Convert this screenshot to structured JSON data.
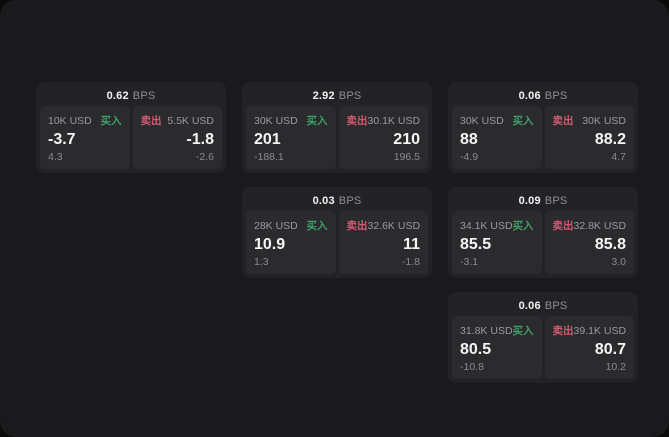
{
  "colors": {
    "page_bg": "#0b0b0c",
    "panel_bg": "#1a1a1c",
    "card_bg": "#232326",
    "subcard_bg": "#2b2b2e",
    "text_primary": "#f5f5f6",
    "text_secondary": "#9a9a9e",
    "buy_green": "#3f9e68",
    "sell_red": "#d15a70"
  },
  "labels": {
    "bps_suffix": "BPS",
    "buy": "买入",
    "sell": "卖出"
  },
  "cards": [
    {
      "bps": "0.62",
      "buy": {
        "amount": "10K USD",
        "price": "-3.7",
        "delta": "4.3"
      },
      "sell": {
        "amount": "5.5K USD",
        "price": "-1.8",
        "delta": "-2.6"
      }
    },
    {
      "bps": "2.92",
      "buy": {
        "amount": "30K USD",
        "price": "201",
        "delta": "-188.1"
      },
      "sell": {
        "amount": "30.1K USD",
        "price": "210",
        "delta": "196.5"
      }
    },
    {
      "bps": "0.06",
      "buy": {
        "amount": "30K USD",
        "price": "88",
        "delta": "-4.9"
      },
      "sell": {
        "amount": "30K USD",
        "price": "88.2",
        "delta": "4.7"
      }
    },
    {
      "bps": "0.03",
      "buy": {
        "amount": "28K USD",
        "price": "10.9",
        "delta": "1.3"
      },
      "sell": {
        "amount": "32.6K USD",
        "price": "11",
        "delta": "-1.8"
      }
    },
    {
      "bps": "0.09",
      "buy": {
        "amount": "34.1K USD",
        "price": "85.5",
        "delta": "-3.1"
      },
      "sell": {
        "amount": "32.8K USD",
        "price": "85.8",
        "delta": "3.0"
      }
    },
    {
      "bps": "0.06",
      "buy": {
        "amount": "31.8K USD",
        "price": "80.5",
        "delta": "-10.8"
      },
      "sell": {
        "amount": "39.1K USD",
        "price": "80.7",
        "delta": "10.2"
      }
    }
  ]
}
